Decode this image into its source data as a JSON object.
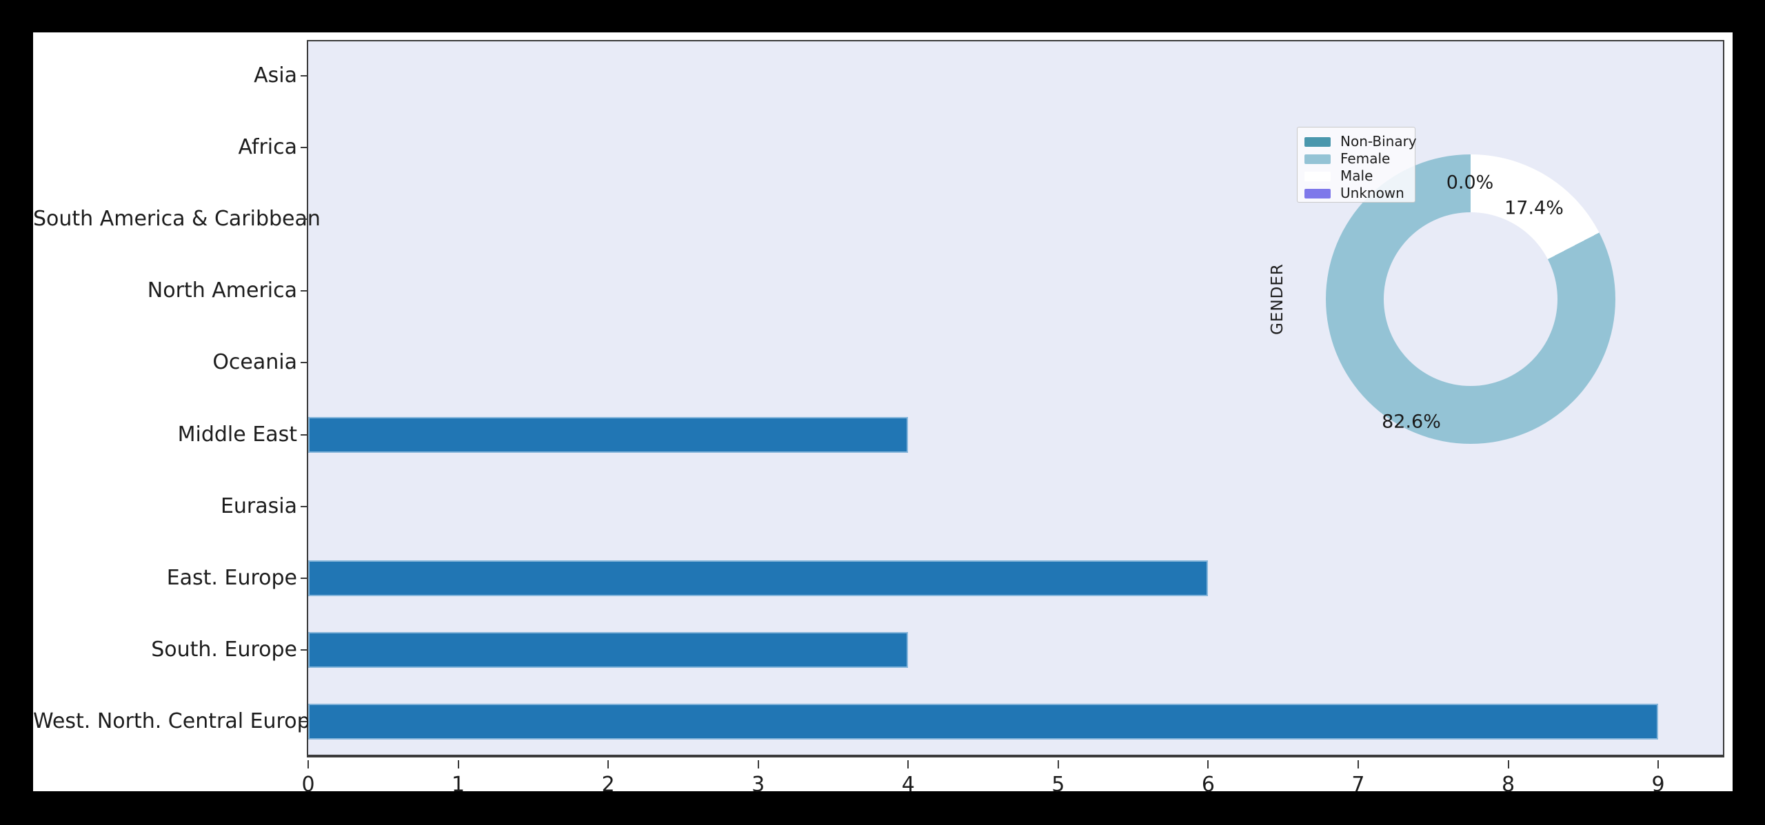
{
  "chart_data": [
    {
      "type": "bar",
      "orientation": "horizontal",
      "categories": [
        "Asia",
        "Africa",
        "South America & Caribbean",
        "North America",
        "Oceania",
        "Middle East",
        "Eurasia",
        "East. Europe",
        "South. Europe",
        "West. North. Central Europe"
      ],
      "values": [
        0,
        0,
        0,
        0,
        0,
        4,
        0,
        6,
        4,
        9
      ],
      "xlabel": "",
      "ylabel": "",
      "xlim": [
        0,
        9.45
      ],
      "xtick_labels": [
        "0",
        "1",
        "2",
        "3",
        "4",
        "5",
        "6",
        "7",
        "8",
        "9"
      ],
      "grid": false,
      "bar_color": "#2176b4",
      "bar_edge_color": "#85b5da",
      "plot_bg": "#e8ebf7"
    },
    {
      "type": "pie",
      "title": "GENDER",
      "labels": [
        "Non-Binary",
        "Female",
        "Male",
        "Unknown"
      ],
      "values_pct": [
        0.0,
        82.6,
        17.4,
        0.0
      ],
      "pct_labels": [
        "0.0%",
        "17.4%",
        "82.6%"
      ],
      "pct_label_of": [
        "Non-Binary",
        "Male",
        "Female"
      ],
      "colors": [
        "#4a97ad",
        "#94c3d5",
        "#ffffff",
        "#7e78ea"
      ],
      "donut_hole_ratio": 0.6,
      "start_angle_deg": 90,
      "direction": "clockwise",
      "order_from_top_cw": [
        "Male",
        "Female"
      ],
      "legend_position": "upper-left",
      "legend_entries": [
        "Non-Binary",
        "Female",
        "Male",
        "Unknown"
      ]
    }
  ]
}
